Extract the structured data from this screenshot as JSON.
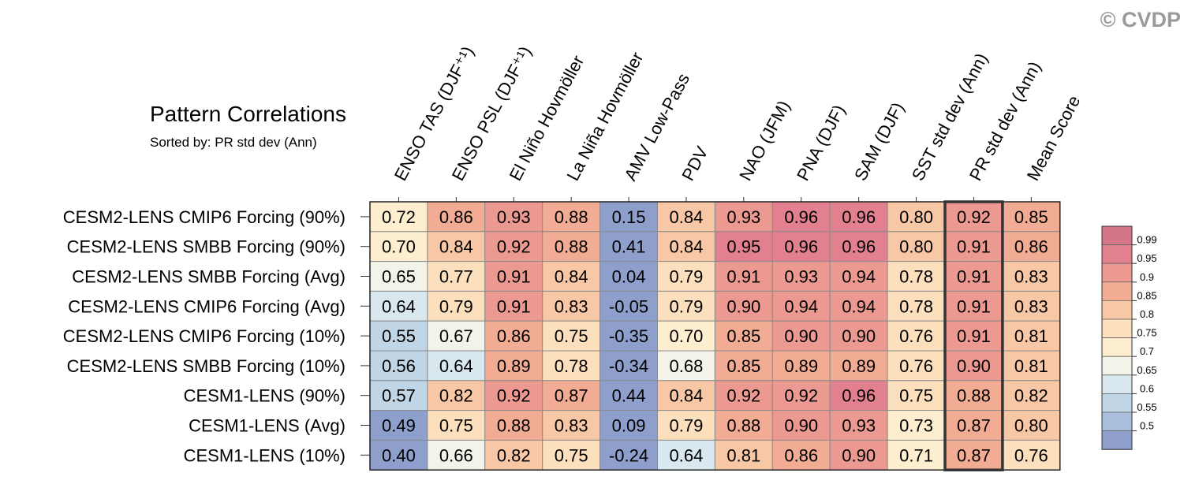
{
  "watermark": "© CVDP",
  "chart_data": {
    "type": "heatmap",
    "title": "Pattern Correlations",
    "subtitle": "Sorted by: PR std dev (Ann)",
    "columns": [
      "ENSO TAS (DJF⁺¹)",
      "ENSO PSL (DJF⁺¹)",
      "El Niño Hovmöller",
      "La Niña Hovmöller",
      "AMV Low-Pass",
      "PDV",
      "NAO (JFM)",
      "PNA (DJF)",
      "SAM (DJF)",
      "SST std dev (Ann)",
      "PR std dev (Ann)",
      "Mean Score"
    ],
    "rows": [
      "CESM2-LENS CMIP6 Forcing (90%)",
      "CESM2-LENS SMBB Forcing (90%)",
      "CESM2-LENS SMBB Forcing (Avg)",
      "CESM2-LENS CMIP6 Forcing (Avg)",
      "CESM2-LENS CMIP6 Forcing (10%)",
      "CESM2-LENS SMBB Forcing (10%)",
      "CESM1-LENS (90%)",
      "CESM1-LENS (Avg)",
      "CESM1-LENS (10%)"
    ],
    "values": [
      [
        "0.72",
        "0.86",
        "0.93",
        "0.88",
        "0.15",
        "0.84",
        "0.93",
        "0.96",
        "0.96",
        "0.80",
        "0.92",
        "0.85"
      ],
      [
        "0.70",
        "0.84",
        "0.92",
        "0.88",
        "0.41",
        "0.84",
        "0.95",
        "0.96",
        "0.96",
        "0.80",
        "0.91",
        "0.86"
      ],
      [
        "0.65",
        "0.77",
        "0.91",
        "0.84",
        "0.04",
        "0.79",
        "0.91",
        "0.93",
        "0.94",
        "0.78",
        "0.91",
        "0.83"
      ],
      [
        "0.64",
        "0.79",
        "0.91",
        "0.83",
        "-0.05",
        "0.79",
        "0.90",
        "0.94",
        "0.94",
        "0.78",
        "0.91",
        "0.83"
      ],
      [
        "0.55",
        "0.67",
        "0.86",
        "0.75",
        "-0.35",
        "0.70",
        "0.85",
        "0.90",
        "0.90",
        "0.76",
        "0.91",
        "0.81"
      ],
      [
        "0.56",
        "0.64",
        "0.89",
        "0.78",
        "-0.34",
        "0.68",
        "0.85",
        "0.89",
        "0.89",
        "0.76",
        "0.90",
        "0.81"
      ],
      [
        "0.57",
        "0.82",
        "0.92",
        "0.87",
        "0.44",
        "0.84",
        "0.92",
        "0.92",
        "0.96",
        "0.75",
        "0.88",
        "0.82"
      ],
      [
        "0.49",
        "0.75",
        "0.88",
        "0.83",
        "0.09",
        "0.79",
        "0.88",
        "0.90",
        "0.93",
        "0.73",
        "0.87",
        "0.80"
      ],
      [
        "0.40",
        "0.66",
        "0.82",
        "0.75",
        "-0.24",
        "0.64",
        "0.81",
        "0.86",
        "0.90",
        "0.71",
        "0.87",
        "0.76"
      ]
    ],
    "highlighted_column": "PR std dev (Ann)",
    "colorbar": {
      "labels": [
        "0.99",
        "0.95",
        "0.9",
        "0.85",
        "0.8",
        "0.75",
        "0.7",
        "0.65",
        "0.6",
        "0.55",
        "0.5"
      ],
      "bins": [
        0.5,
        0.55,
        0.6,
        0.65,
        0.7,
        0.75,
        0.8,
        0.85,
        0.9,
        0.95,
        0.99
      ],
      "colors": [
        "#8e9fcc",
        "#a8bedc",
        "#c0d5e6",
        "#d9e8ef",
        "#f3f3ea",
        "#fdeed0",
        "#fce0bd",
        "#f8c7a5",
        "#f2ac94",
        "#ec9a91",
        "#e2808f",
        "#d4758a"
      ],
      "position": "right"
    }
  }
}
